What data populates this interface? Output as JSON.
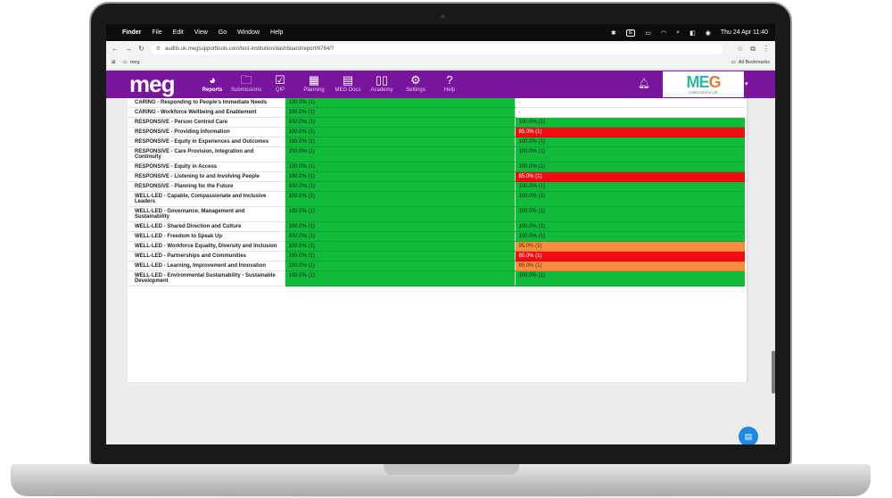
{
  "menubar": {
    "app": "Finder",
    "items": [
      "File",
      "Edit",
      "View",
      "Go",
      "Window",
      "Help"
    ],
    "datetime": "Thu 24 Apr  11:40",
    "kbd": "IE"
  },
  "browser": {
    "url": "audits.uk.megsupporttools.com/test-institution/dashboard/report/6764/?",
    "bookmark": "meg",
    "all_bookmarks": "All Bookmarks"
  },
  "app": {
    "logo": "meg",
    "nav": [
      {
        "label": "Reports",
        "icon": "pie-chart-icon"
      },
      {
        "label": "Submissions",
        "icon": "folder-icon"
      },
      {
        "label": "QIP",
        "icon": "checkbox-icon"
      },
      {
        "label": "Planning",
        "icon": "calendar-icon"
      },
      {
        "label": "MEG Docs",
        "icon": "document-icon"
      },
      {
        "label": "Academy",
        "icon": "book-icon"
      },
      {
        "label": "Settings",
        "icon": "gear-icon"
      },
      {
        "label": "Help",
        "icon": "help-icon"
      }
    ],
    "client_logo_me": "ME",
    "client_logo_g": "G",
    "client_name": "Client Demo UK"
  },
  "colors": {
    "header": "#78149e",
    "green": "#10bb3a",
    "red": "#f20c12",
    "orange": "#fa8c3e"
  },
  "rows": [
    {
      "name": "CARING - Responding to People's Immediate Needs",
      "a": "100.0% (1)",
      "a_status": "green",
      "b": "-",
      "b_status": "white"
    },
    {
      "name": "CARING - Workforce Wellbeing and Enablement",
      "a": "100.0% (1)",
      "a_status": "green",
      "b": "-",
      "b_status": "white"
    },
    {
      "name": "RESPONSIVE - Person Centred Care",
      "a": "100.0% (1)",
      "a_status": "green",
      "b": "100.0% (1)",
      "b_status": "green"
    },
    {
      "name": "RESPONSIVE - Providing Information",
      "a": "100.0% (1)",
      "a_status": "green",
      "b": "85.0% (1)",
      "b_status": "red"
    },
    {
      "name": "RESPONSIVE - Equity in Experiences and Outcomes",
      "a": "100.0% (1)",
      "a_status": "green",
      "b": "100.0% (1)",
      "b_status": "green"
    },
    {
      "name": "RESPONSIVE - Care Provision, Integration and Continuity",
      "a": "100.0% (1)",
      "a_status": "green",
      "b": "100.0% (1)",
      "b_status": "green"
    },
    {
      "name": "RESPONSIVE - Equity in Access",
      "a": "100.0% (1)",
      "a_status": "green",
      "b": "100.0% (1)",
      "b_status": "green"
    },
    {
      "name": "RESPONSIVE - Listening to and Involving People",
      "a": "100.0% (1)",
      "a_status": "green",
      "b": "85.0% (1)",
      "b_status": "red"
    },
    {
      "name": "RESPONSIVE - Planning for the Future",
      "a": "100.0% (1)",
      "a_status": "green",
      "b": "100.0% (1)",
      "b_status": "green"
    },
    {
      "name": "WELL-LED - Capable, Compassionate and Inclusive Leaders",
      "a": "100.0% (1)",
      "a_status": "green",
      "b": "100.0% (1)",
      "b_status": "green"
    },
    {
      "name": "WELL-LED - Governance, Management and Sustainability",
      "a": "100.0% (1)",
      "a_status": "green",
      "b": "100.0% (1)",
      "b_status": "green"
    },
    {
      "name": "WELL-LED - Shared Direction and Culture",
      "a": "100.0% (1)",
      "a_status": "green",
      "b": "100.0% (1)",
      "b_status": "green"
    },
    {
      "name": "WELL-LED - Freedom to Speak Up",
      "a": "100.0% (1)",
      "a_status": "green",
      "b": "100.0% (1)",
      "b_status": "green"
    },
    {
      "name": "WELL-LED - Workforce Equality, Diversity and Inclusion",
      "a": "100.0% (1)",
      "a_status": "green",
      "b": "95.0% (1)",
      "b_status": "orange"
    },
    {
      "name": "WELL-LED - Partnerships and Communities",
      "a": "100.0% (1)",
      "a_status": "green",
      "b": "85.0% (1)",
      "b_status": "red"
    },
    {
      "name": "WELL-LED - Learning, Improvement and Innovation",
      "a": "100.0% (1)",
      "a_status": "green",
      "b": "95.0% (1)",
      "b_status": "orange"
    },
    {
      "name": "WELL-LED - Environmental Sustainability - Sustainable Development",
      "a": "100.0% (1)",
      "a_status": "green",
      "b": "100.0% (1)",
      "b_status": "green"
    }
  ]
}
